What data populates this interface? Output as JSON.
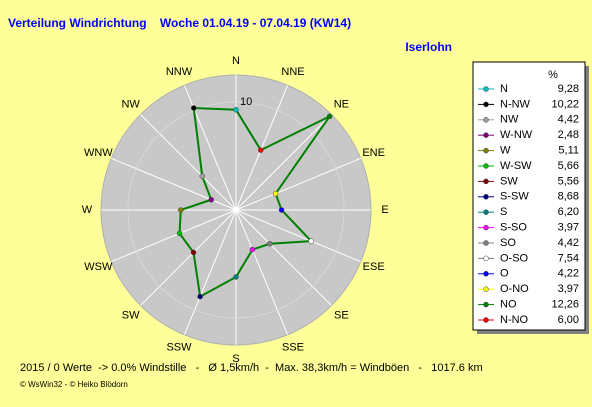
{
  "chart_data": {
    "type": "radar",
    "title": "Verteilung Windrichtung    Woche 01.04.19 - 07.04.19 (KW14)",
    "subtitle": "Iserlohn",
    "direction": "counterclockwise",
    "categories": [
      "N",
      "NNW",
      "NW",
      "WNW",
      "W",
      "WSW",
      "SW",
      "SSW",
      "S",
      "SSE",
      "SE",
      "ESE",
      "E",
      "ENE",
      "NE",
      "NNE"
    ],
    "legend_title": "%",
    "legend_names": [
      "N",
      "N-NW",
      "NW",
      "W-NW",
      "W",
      "W-SW",
      "SW",
      "S-SW",
      "S",
      "S-SO",
      "SO",
      "O-SO",
      "O",
      "O-NO",
      "NO",
      "N-NO"
    ],
    "values": [
      9.28,
      10.22,
      4.42,
      2.48,
      5.11,
      5.66,
      5.56,
      8.68,
      6.2,
      3.97,
      4.42,
      7.54,
      4.22,
      3.97,
      12.26,
      6.0
    ],
    "value_labels": [
      "9,28",
      "10,22",
      "4,42",
      "2,48",
      "5,11",
      "5,66",
      "5,56",
      "8,68",
      "6,20",
      "3,97",
      "4,42",
      "7,54",
      "4,22",
      "3,97",
      "12,26",
      "6,00"
    ],
    "colors": [
      "#00c0c0",
      "#000000",
      "#a0a0a0",
      "#800080",
      "#808000",
      "#00c000",
      "#800000",
      "#000080",
      "#008080",
      "#ff00ff",
      "#808080",
      "#ffffff",
      "#0000ff",
      "#ffff00",
      "#008000",
      "#ff0000"
    ],
    "line_color": "#008000",
    "ylim": [
      0,
      12.5
    ],
    "yticks": [
      10
    ],
    "footer": "2015 / 0 Werte  -> 0.0% Windstille   -   Ø 1,5km/h  -  Max. 38,3km/h = Windböen   -   1017.6 km",
    "credit": "© WsWin32  - © Heiko Blödorn"
  }
}
